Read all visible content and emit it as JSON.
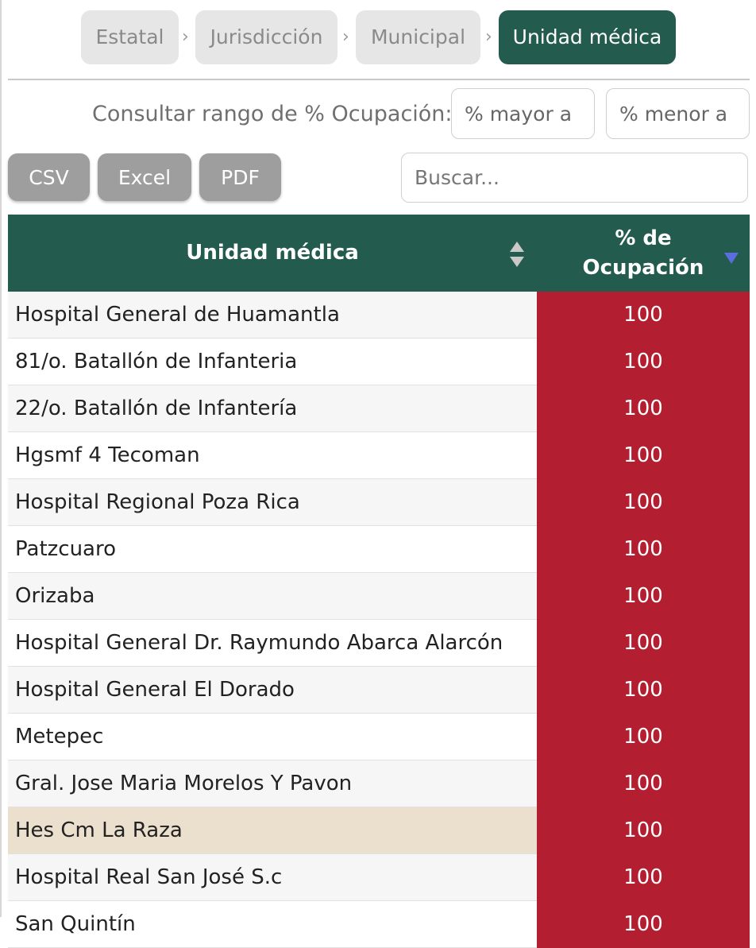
{
  "breadcrumb": {
    "items": [
      {
        "label": "Estatal"
      },
      {
        "label": "Jurisdicción"
      },
      {
        "label": "Municipal"
      },
      {
        "label": "Unidad médica"
      }
    ],
    "separator": "›",
    "active_index": 3
  },
  "range_filter": {
    "label": "Consultar rango de % Ocupación:",
    "min_placeholder": "% mayor a",
    "max_placeholder": "% menor a",
    "min_value": "",
    "max_value": ""
  },
  "export": {
    "csv_label": "CSV",
    "excel_label": "Excel",
    "pdf_label": "PDF"
  },
  "search": {
    "placeholder": "Buscar...",
    "value": ""
  },
  "table": {
    "headers": {
      "unit": "Unidad médica",
      "occupancy": "% de\nOcupación"
    },
    "sort": {
      "column": "occupancy",
      "direction": "desc"
    },
    "rows": [
      {
        "name": "Hospital General de Huamantla",
        "occupancy": "100"
      },
      {
        "name": "81/o. Batallón de Infanteria",
        "occupancy": "100"
      },
      {
        "name": "22/o. Batallón de Infantería",
        "occupancy": "100"
      },
      {
        "name": "Hgsmf 4 Tecoman",
        "occupancy": "100"
      },
      {
        "name": "Hospital Regional Poza Rica",
        "occupancy": "100"
      },
      {
        "name": "Patzcuaro",
        "occupancy": "100"
      },
      {
        "name": "Orizaba",
        "occupancy": "100"
      },
      {
        "name": "Hospital General Dr. Raymundo Abarca Alarcón",
        "occupancy": "100"
      },
      {
        "name": "Hospital General El Dorado",
        "occupancy": "100"
      },
      {
        "name": "Metepec",
        "occupancy": "100"
      },
      {
        "name": "Gral. Jose Maria Morelos Y Pavon",
        "occupancy": "100"
      },
      {
        "name": "Hes Cm La Raza",
        "occupancy": "100"
      },
      {
        "name": "Hospital Real San José S.c",
        "occupancy": "100"
      },
      {
        "name": "San Quintín",
        "occupancy": "100"
      }
    ],
    "hovered_row": 11
  },
  "colors": {
    "header_green": "#235b4e",
    "occupancy_red": "#b31f31",
    "button_gray": "#9e9e9e",
    "hover_row": "#ebe0cd",
    "sort_active": "#5b6ee0"
  }
}
